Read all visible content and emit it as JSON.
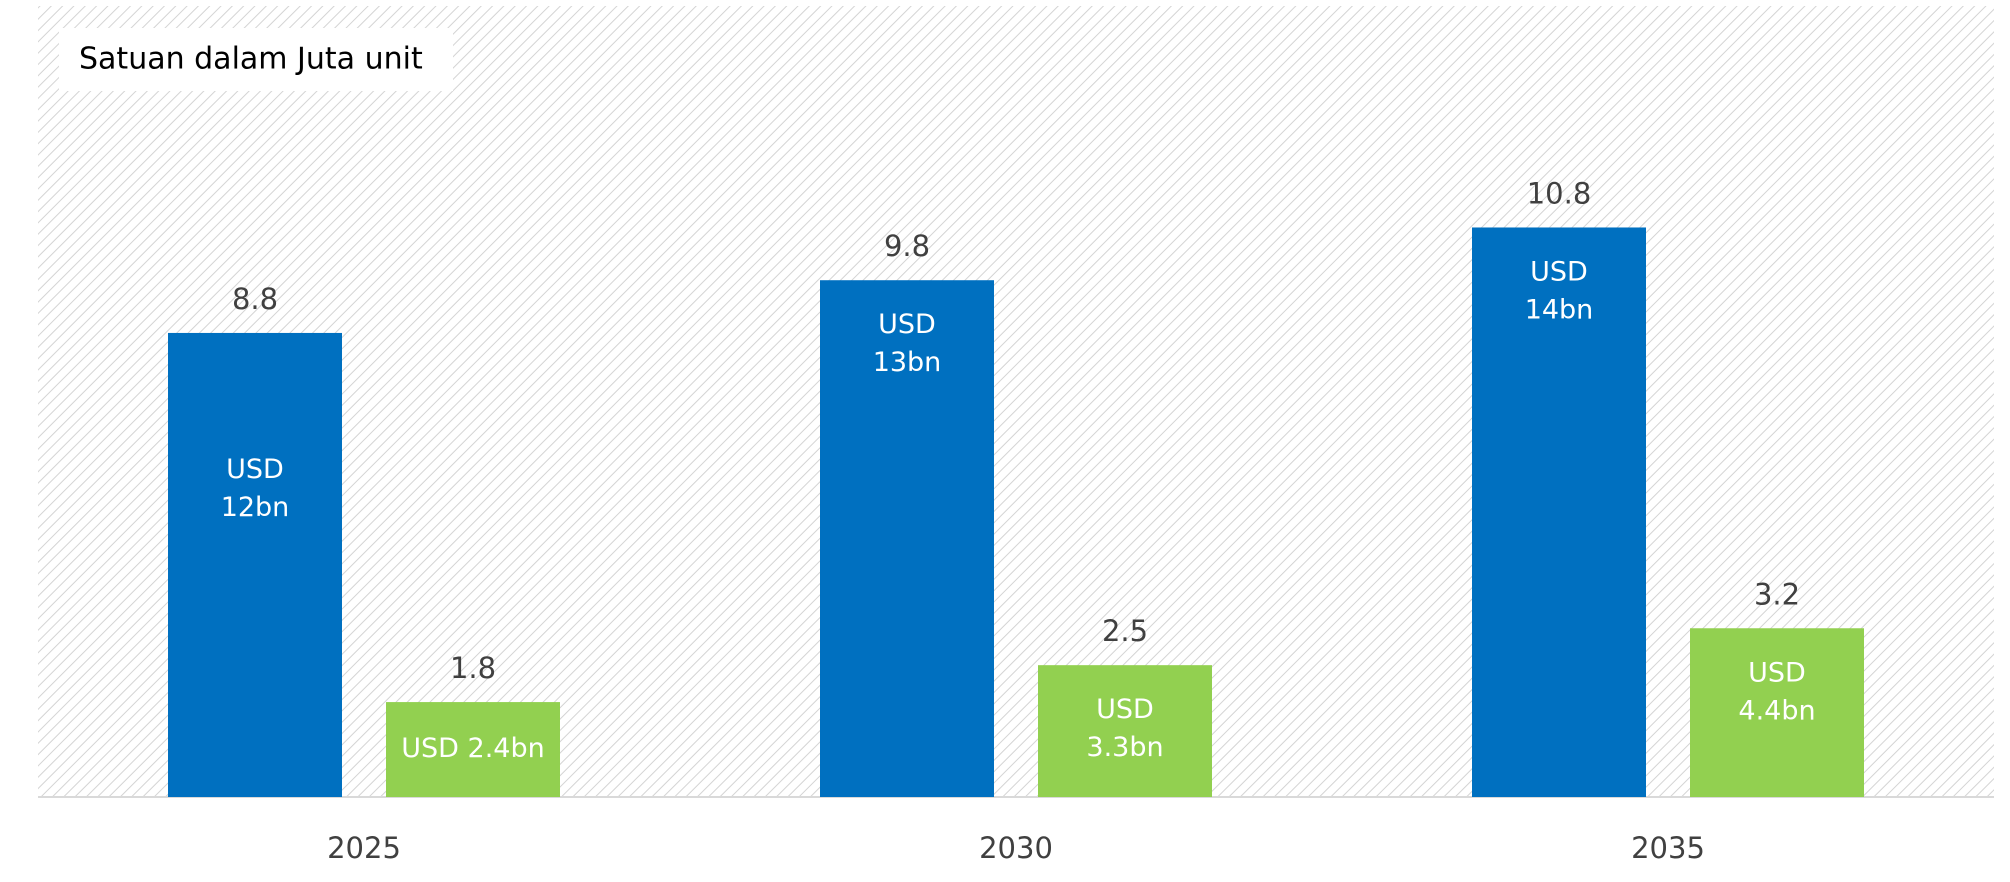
{
  "chart_data": {
    "type": "bar",
    "subtitle": "Satuan dalam Juta unit",
    "categories": [
      "2025",
      "2030",
      "2035"
    ],
    "series": [
      {
        "color": "#0070c0",
        "values": [
          8.8,
          9.8,
          10.8
        ],
        "annotations": [
          "USD 12bn",
          "USD 13bn",
          "USD 14bn"
        ]
      },
      {
        "color": "#92d050",
        "values": [
          1.8,
          2.5,
          3.2
        ],
        "annotations": [
          "USD 2.4bn",
          "USD 3.3bn",
          "USD 4.4bn"
        ]
      }
    ],
    "ylim": [
      0,
      15
    ]
  }
}
